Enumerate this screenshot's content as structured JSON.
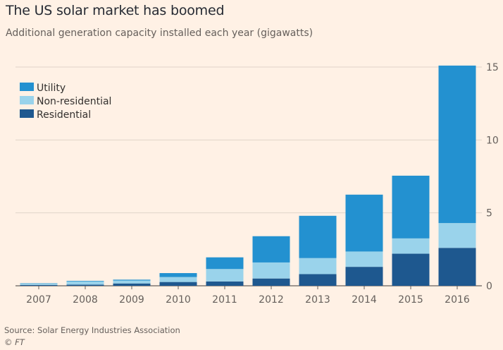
{
  "chart_data": {
    "type": "bar",
    "stacked": true,
    "title": "The US solar market has boomed",
    "subtitle": "Additional generation capacity installed each year (gigawatts)",
    "categories": [
      "2007",
      "2008",
      "2009",
      "2010",
      "2011",
      "2012",
      "2013",
      "2014",
      "2015",
      "2016"
    ],
    "series": [
      {
        "name": "Residential",
        "color": "#1e588f",
        "values": [
          0.06,
          0.08,
          0.16,
          0.26,
          0.3,
          0.5,
          0.8,
          1.3,
          2.2,
          2.6
        ]
      },
      {
        "name": "Non-residential",
        "color": "#9ad3eb",
        "values": [
          0.1,
          0.22,
          0.2,
          0.34,
          0.85,
          1.1,
          1.1,
          1.05,
          1.05,
          1.7
        ]
      },
      {
        "name": "Utility",
        "color": "#2391d0",
        "values": [
          0.02,
          0.04,
          0.06,
          0.27,
          0.8,
          1.8,
          2.9,
          3.9,
          4.3,
          10.8
        ]
      }
    ],
    "legend_order": [
      "Utility",
      "Non-residential",
      "Residential"
    ],
    "legend_position": "top-left",
    "xlabel": "",
    "ylabel": "",
    "ylim": [
      0,
      15
    ],
    "yticks": [
      0,
      5,
      10,
      15
    ],
    "grid": true
  },
  "footer": {
    "source": "Source: Solar Energy Industries Association",
    "credit": "© FT"
  }
}
